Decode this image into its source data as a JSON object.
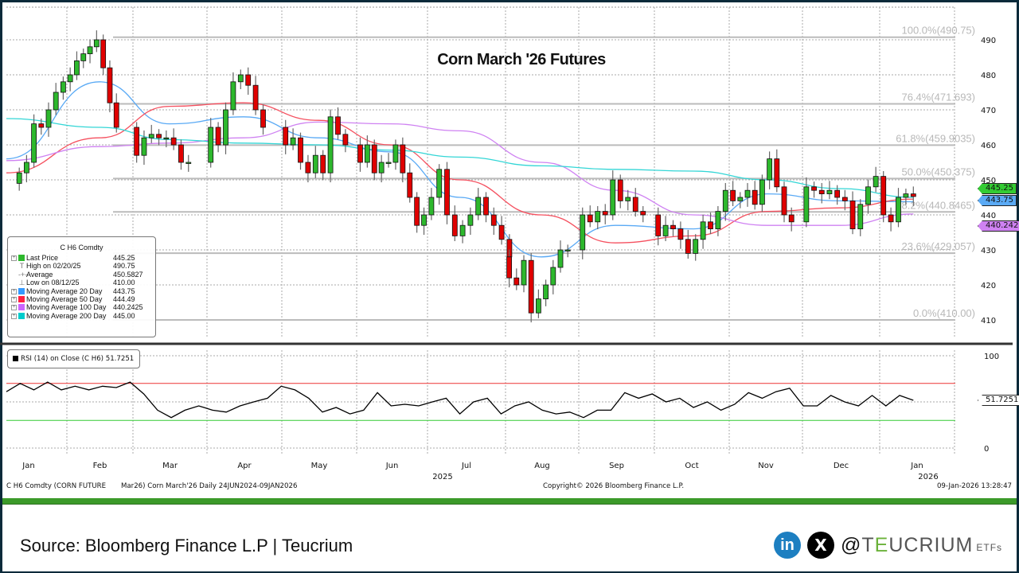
{
  "title": "Corn March '26 Futures",
  "legend": {
    "header": "C H6 Comdty",
    "rows": [
      {
        "label": "Last Price",
        "value": "445.25",
        "color": "#2db82d",
        "icon": "square"
      },
      {
        "label": "High on 02/20/25",
        "value": "490.75",
        "icon": "high-marker"
      },
      {
        "label": "Average",
        "value": "450.5827",
        "icon": "average-marker"
      },
      {
        "label": "Low on 08/12/25",
        "value": "410.00",
        "icon": "low-marker"
      },
      {
        "label": "Moving Average 20 Day",
        "value": "443.75",
        "color": "#3399ff",
        "icon": "square"
      },
      {
        "label": "Moving Average 50 Day",
        "value": "444.49",
        "color": "#ff2040",
        "icon": "square"
      },
      {
        "label": "Moving Average 100 Day",
        "value": "440.2425",
        "color": "#cc66ff",
        "icon": "square"
      },
      {
        "label": "Moving Average 200 Day",
        "value": "445.00",
        "color": "#00cccc",
        "icon": "square"
      }
    ]
  },
  "rsi_legend": "RSI (14)  on Close (C H6) 51.7251",
  "price_tags": {
    "last": "445.25",
    "ma20": "443.75",
    "ma100": "440.2425",
    "rsi": "51.7251"
  },
  "footer": {
    "ticker": "C H6 Comdty (CORN FUTURE",
    "description": "Mar26) Corn March'26 Daily 24JUN2024-09JAN2026",
    "copyright": "Copyright© 2026 Bloomberg Finance L.P.",
    "timestamp": "09-Jan-2026 13:28:47"
  },
  "source": "Source: Bloomberg Finance L.P | Teucrium",
  "social": {
    "linkedin": "in",
    "x": "X",
    "handle_at": "@",
    "handle_t": "T",
    "handle_e": "E",
    "handle_rest": "UCRIUM",
    "etfs": "ETFs"
  },
  "chart_data": {
    "type": "candlestick",
    "title": "Corn March '26 Futures",
    "y_ticks": [
      "410",
      "420",
      "430",
      "440",
      "450",
      "460",
      "470",
      "480",
      "490"
    ],
    "ylim": [
      408,
      498
    ],
    "x_ticks": [
      "Jan",
      "Feb",
      "Mar",
      "Apr",
      "May",
      "Jun",
      "Jul",
      "Aug",
      "Sep",
      "Oct",
      "Nov",
      "Dec",
      "Jan"
    ],
    "year_labels": [
      "2025",
      "2026"
    ],
    "grid": true,
    "candles": [
      {
        "month": "Jan",
        "year": 2025,
        "closes": [
          452,
          455,
          466,
          465,
          470,
          475,
          478
        ]
      },
      {
        "month": "Feb",
        "year": 2025,
        "closes": [
          480,
          484,
          486,
          488,
          490,
          482,
          472,
          465
        ]
      },
      {
        "month": "Mar",
        "year": 2025,
        "closes": [
          457,
          462,
          463,
          462,
          462,
          460,
          455,
          455
        ]
      },
      {
        "month": "Apr",
        "year": 2025,
        "closes": [
          465,
          460,
          470,
          478,
          480,
          477,
          470,
          465
        ]
      },
      {
        "month": "May",
        "year": 2025,
        "closes": [
          460,
          462,
          455,
          452,
          457,
          452,
          468,
          463,
          460
        ]
      },
      {
        "month": "Jun",
        "year": 2025,
        "closes": [
          455,
          460,
          452,
          455,
          455,
          460,
          452,
          445,
          437,
          440
        ]
      },
      {
        "month": "Jul",
        "year": 2025,
        "closes": [
          445,
          453,
          440,
          434,
          437,
          440,
          445,
          440,
          437,
          433,
          428
        ]
      },
      {
        "month": "Aug",
        "year": 2025,
        "closes": [
          422,
          420,
          427,
          412,
          416,
          420,
          425,
          430,
          430
        ]
      },
      {
        "month": "Sep",
        "year": 2025,
        "closes": [
          440,
          438,
          441,
          440,
          450,
          444,
          445,
          441,
          440
        ]
      },
      {
        "month": "Oct",
        "year": 2025,
        "closes": [
          434,
          437,
          436,
          433,
          429,
          433,
          438,
          436,
          441,
          447
        ]
      },
      {
        "month": "Nov",
        "year": 2025,
        "closes": [
          444,
          445,
          447,
          443,
          450,
          456,
          448,
          440,
          438
        ]
      },
      {
        "month": "Dec",
        "year": 2025,
        "closes": [
          448,
          447,
          446,
          447,
          445,
          444,
          436,
          443,
          448,
          451
        ]
      },
      {
        "month": "Jan",
        "year": 2026,
        "closes": [
          440,
          438,
          445,
          446,
          445.25
        ]
      }
    ],
    "moving_averages": [
      {
        "name": "Moving Average 20 Day",
        "color": "#5aaaf5",
        "monthly": [
          456,
          478,
          466,
          468,
          462,
          458,
          445,
          428,
          437,
          436,
          446,
          444
        ],
        "last": 443.75
      },
      {
        "name": "Moving Average 50 Day",
        "color": "#f5505f",
        "monthly": [
          452,
          462,
          471,
          472,
          467,
          460,
          450,
          440,
          432,
          434,
          441,
          442
        ],
        "last": 444.49
      },
      {
        "name": "Moving Average 100 Day",
        "color": "#cf82f2",
        "monthly": [
          455.5,
          459.5,
          460.5,
          462,
          466.5,
          466,
          464,
          455,
          447,
          440,
          437,
          437
        ],
        "last": 440.2425
      },
      {
        "name": "Moving Average 200 Day",
        "color": "#33d6d6",
        "monthly": [
          467.5,
          465,
          461.5,
          460.5,
          460,
          458.5,
          456.5,
          454,
          453,
          452.5,
          450,
          447.5
        ],
        "last": 445.0
      }
    ],
    "fibonacci": [
      {
        "label": "100.0%(490.75)",
        "value": 490.75
      },
      {
        "label": "76.4%(471.693)",
        "value": 471.693
      },
      {
        "label": "61.8%(459.9035)",
        "value": 459.9035
      },
      {
        "label": "50.0%(450.375)",
        "value": 450.375
      },
      {
        "label": "38.2%(440.8465)",
        "value": 440.8465
      },
      {
        "label": "23.6%(429.057)",
        "value": 429.057
      },
      {
        "label": "0.0%(410.00)",
        "value": 410.0
      }
    ],
    "rsi": {
      "name": "RSI (14)",
      "y_ticks": [
        "0",
        "100"
      ],
      "overbought": 70,
      "oversold": 30,
      "values": [
        61,
        70,
        63,
        71.5,
        63,
        67,
        63,
        67,
        65.5,
        71.5,
        58.6,
        41,
        33,
        41,
        45.7,
        41,
        39,
        45.7,
        50,
        54,
        67,
        63,
        54,
        39,
        44,
        37,
        41,
        60,
        45.7,
        47.4,
        45.7,
        50,
        54,
        37,
        50,
        54,
        37,
        45.7,
        50,
        41,
        37,
        39,
        33,
        41,
        41,
        60,
        54,
        58.6,
        50,
        54,
        44,
        50,
        41,
        47.4,
        60,
        54,
        61,
        64.7,
        45.7,
        45.7,
        57,
        50,
        45.7,
        57,
        45.7,
        57,
        51.7251
      ]
    }
  }
}
